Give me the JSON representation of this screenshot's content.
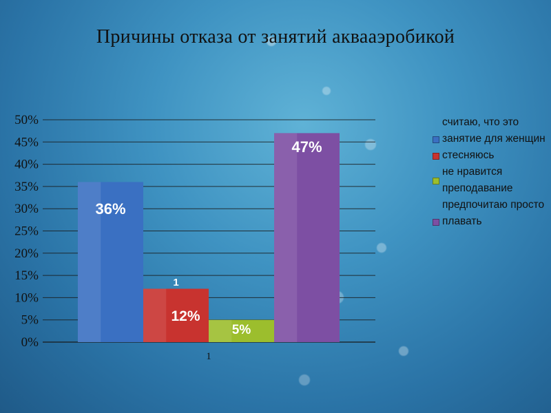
{
  "title": "Причины отказа от занятий аквааэробикой",
  "chart_data": {
    "type": "bar",
    "categories": [
      "1"
    ],
    "ylim": [
      0,
      50
    ],
    "yticks": [
      "0%",
      "5%",
      "10%",
      "15%",
      "20%",
      "25%",
      "30%",
      "35%",
      "40%",
      "45%",
      "50%"
    ],
    "series": [
      {
        "name": "считаю, что это занятие для женщин",
        "values": [
          36
        ],
        "label": "36%",
        "color": "#3a70c2"
      },
      {
        "name": "стесняюсь",
        "values": [
          12
        ],
        "label": "12%",
        "extra_label": "1",
        "color": "#c8332f"
      },
      {
        "name": "не нравится преподавание",
        "values": [
          5
        ],
        "label": "5%",
        "color": "#9cbe2d"
      },
      {
        "name": "предпочитаю просто плавать",
        "values": [
          47
        ],
        "label": "47%",
        "color": "#7d4fa3"
      }
    ],
    "legend_position": "right",
    "grid": true
  }
}
